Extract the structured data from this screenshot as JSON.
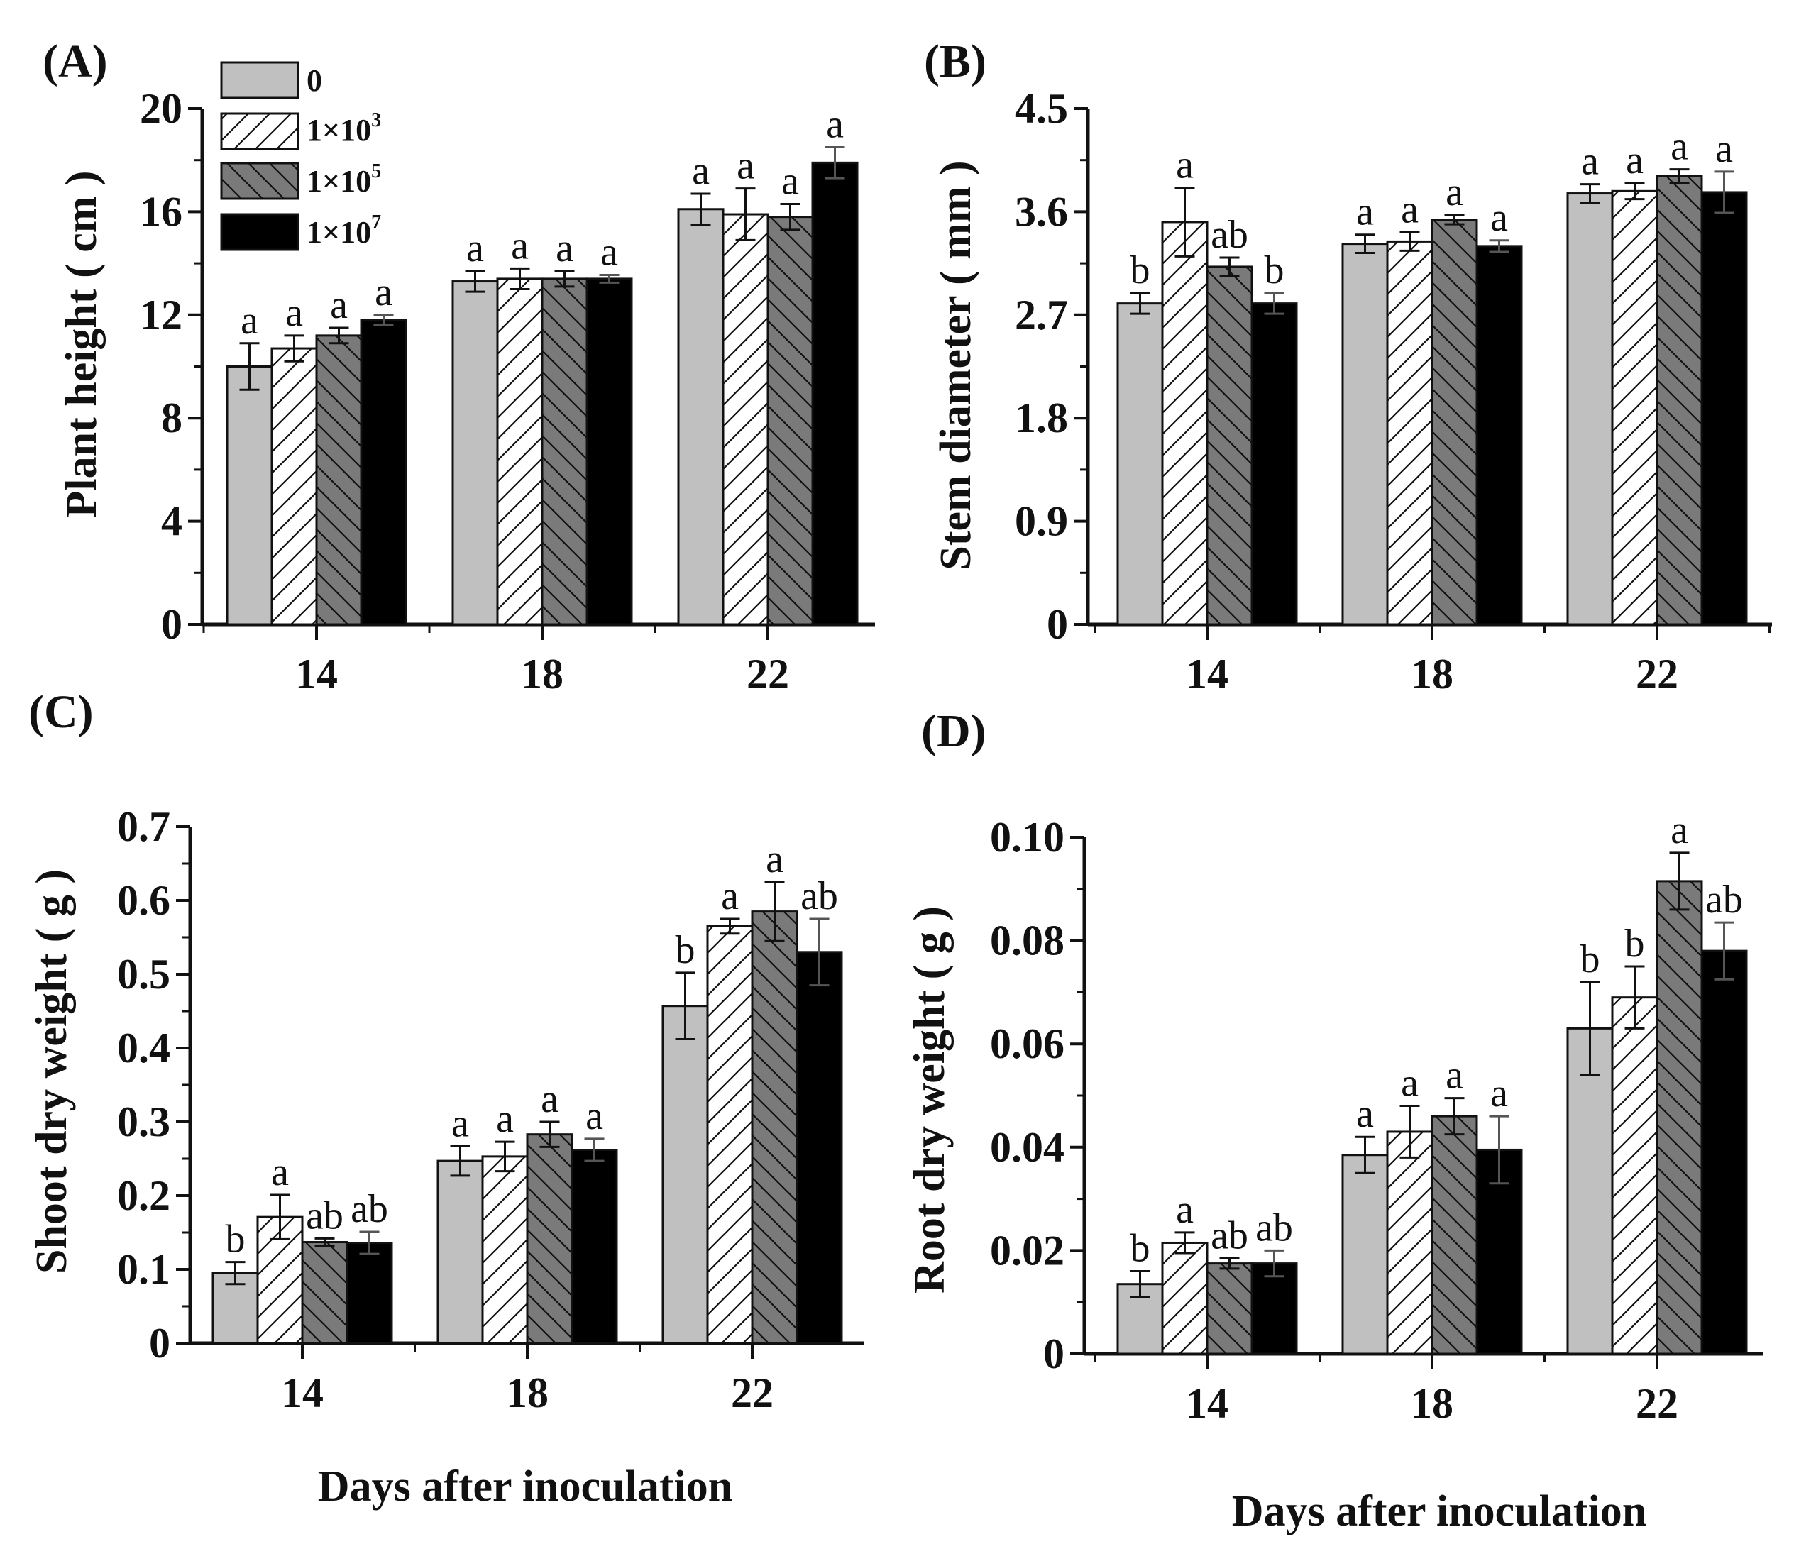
{
  "figure": {
    "x_axis_title": "Days after inoculation",
    "legend": [
      {
        "label": "0",
        "fill": "gray"
      },
      {
        "label": "1×10",
        "exponent": "3",
        "fill": "white-hatch"
      },
      {
        "label": "1×10",
        "exponent": "5",
        "fill": "dark-hatch"
      },
      {
        "label": "1×10",
        "exponent": "7",
        "fill": "black"
      }
    ]
  },
  "colors": {
    "gray": "#c0c0c0",
    "white": "#ffffff",
    "dark": "#7a7a7a",
    "black": "#000000",
    "ink": "#111111"
  },
  "chart_data": [
    {
      "id": "A",
      "panel_label": "(A)",
      "type": "bar",
      "ylabel": "Plant height ( cm )",
      "xlabel": "",
      "categories": [
        "14",
        "18",
        "22"
      ],
      "yticks": [
        "0",
        "4",
        "8",
        "12",
        "16",
        "20"
      ],
      "ylim": [
        0,
        20
      ],
      "series": [
        {
          "name": "0",
          "values": [
            10.0,
            13.3,
            16.1
          ],
          "errors": [
            0.9,
            0.4,
            0.6
          ],
          "letters": [
            "a",
            "a",
            "a"
          ]
        },
        {
          "name": "1×10^3",
          "values": [
            10.7,
            13.4,
            15.9
          ],
          "errors": [
            0.5,
            0.4,
            1.0
          ],
          "letters": [
            "a",
            "a",
            "a"
          ]
        },
        {
          "name": "1×10^5",
          "values": [
            11.2,
            13.4,
            15.8
          ],
          "errors": [
            0.3,
            0.3,
            0.5
          ],
          "letters": [
            "a",
            "a",
            "a"
          ]
        },
        {
          "name": "1×10^7",
          "values": [
            11.8,
            13.4,
            17.9
          ],
          "errors": [
            0.2,
            0.15,
            0.6
          ],
          "letters": [
            "a",
            "a",
            "a"
          ]
        }
      ]
    },
    {
      "id": "B",
      "panel_label": "(B)",
      "type": "bar",
      "ylabel": "Stem diameter ( mm )",
      "xlabel": "",
      "categories": [
        "14",
        "18",
        "22"
      ],
      "yticks": [
        "0",
        "0.9",
        "1.8",
        "2.7",
        "3.6",
        "4.5"
      ],
      "ylim": [
        0,
        4.5
      ],
      "series": [
        {
          "name": "0",
          "values": [
            2.8,
            3.32,
            3.76
          ],
          "errors": [
            0.09,
            0.08,
            0.08
          ],
          "letters": [
            "b",
            "a",
            "a"
          ]
        },
        {
          "name": "1×10^3",
          "values": [
            3.51,
            3.34,
            3.78
          ],
          "errors": [
            0.3,
            0.08,
            0.07
          ],
          "letters": [
            "a",
            "a",
            "a"
          ]
        },
        {
          "name": "1×10^5",
          "values": [
            3.12,
            3.53,
            3.91
          ],
          "errors": [
            0.08,
            0.04,
            0.06
          ],
          "letters": [
            "ab",
            "a",
            "a"
          ]
        },
        {
          "name": "1×10^7",
          "values": [
            2.8,
            3.3,
            3.77
          ],
          "errors": [
            0.09,
            0.05,
            0.18
          ],
          "letters": [
            "b",
            "a",
            "a"
          ]
        }
      ]
    },
    {
      "id": "C",
      "panel_label": "(C)",
      "type": "bar",
      "ylabel": "Shoot dry weight ( g )",
      "xlabel": "Days after inoculation",
      "categories": [
        "14",
        "18",
        "22"
      ],
      "yticks": [
        "0",
        "0.1",
        "0.2",
        "0.3",
        "0.4",
        "0.5",
        "0.6",
        "0.7"
      ],
      "ylim": [
        0,
        0.7
      ],
      "series": [
        {
          "name": "0",
          "values": [
            0.095,
            0.247,
            0.457
          ],
          "errors": [
            0.015,
            0.02,
            0.045
          ],
          "letters": [
            "b",
            "a",
            "b"
          ]
        },
        {
          "name": "1×10^3",
          "values": [
            0.171,
            0.253,
            0.565
          ],
          "errors": [
            0.03,
            0.02,
            0.01
          ],
          "letters": [
            "a",
            "a",
            "a"
          ]
        },
        {
          "name": "1×10^5",
          "values": [
            0.137,
            0.283,
            0.585
          ],
          "errors": [
            0.005,
            0.017,
            0.04
          ],
          "letters": [
            "ab",
            "a",
            "a"
          ]
        },
        {
          "name": "1×10^7",
          "values": [
            0.136,
            0.262,
            0.53
          ],
          "errors": [
            0.015,
            0.015,
            0.045
          ],
          "letters": [
            "ab",
            "a",
            "ab"
          ]
        }
      ]
    },
    {
      "id": "D",
      "panel_label": "(D)",
      "type": "bar",
      "ylabel": "Root dry weight ( g )",
      "xlabel": "Days after inoculation",
      "categories": [
        "14",
        "18",
        "22"
      ],
      "yticks": [
        "0",
        "0.02",
        "0.04",
        "0.06",
        "0.08",
        "0.10"
      ],
      "ylim": [
        0,
        0.1
      ],
      "series": [
        {
          "name": "0",
          "values": [
            0.0135,
            0.0385,
            0.063
          ],
          "errors": [
            0.0025,
            0.0035,
            0.009
          ],
          "letters": [
            "b",
            "a",
            "b"
          ]
        },
        {
          "name": "1×10^3",
          "values": [
            0.0215,
            0.043,
            0.069
          ],
          "errors": [
            0.002,
            0.005,
            0.006
          ],
          "letters": [
            "a",
            "a",
            "b"
          ]
        },
        {
          "name": "1×10^5",
          "values": [
            0.0175,
            0.046,
            0.0915
          ],
          "errors": [
            0.001,
            0.0035,
            0.0055
          ],
          "letters": [
            "ab",
            "a",
            "a"
          ]
        },
        {
          "name": "1×10^7",
          "values": [
            0.0175,
            0.0395,
            0.078
          ],
          "errors": [
            0.0025,
            0.0065,
            0.0055
          ],
          "letters": [
            "ab",
            "a",
            "ab"
          ]
        }
      ]
    }
  ]
}
